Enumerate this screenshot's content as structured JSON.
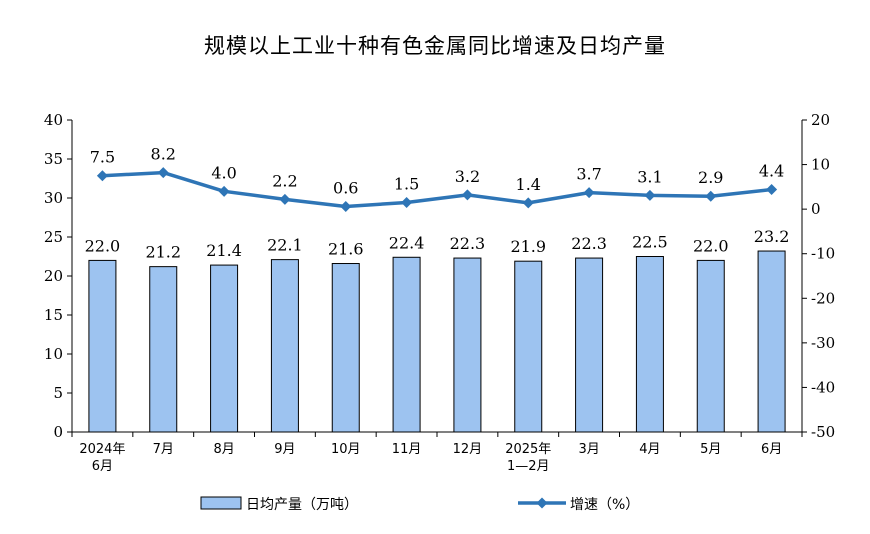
{
  "chart_data": {
    "type": "bar",
    "title": "规模以上工业十种有色金属同比增速及日均产量",
    "categories": [
      [
        "2024年",
        "6月"
      ],
      [
        "7月"
      ],
      [
        "8月"
      ],
      [
        "9月"
      ],
      [
        "10月"
      ],
      [
        "11月"
      ],
      [
        "12月"
      ],
      [
        "2025年",
        "1—2月"
      ],
      [
        "3月"
      ],
      [
        "4月"
      ],
      [
        "5月"
      ],
      [
        "6月"
      ]
    ],
    "series": [
      {
        "name": "日均产量（万吨）",
        "type": "bar",
        "axis": "left",
        "color": "#9dc3f0",
        "values": [
          22.0,
          21.2,
          21.4,
          22.1,
          21.6,
          22.4,
          22.3,
          21.9,
          22.3,
          22.5,
          22.0,
          23.2
        ],
        "labels": [
          "22.0",
          "21.2",
          "21.4",
          "22.1",
          "21.6",
          "22.4",
          "22.3",
          "21.9",
          "22.3",
          "22.5",
          "22.0",
          "23.2"
        ]
      },
      {
        "name": "增速（%）",
        "type": "line",
        "axis": "right",
        "color": "#2e75b6",
        "values": [
          7.5,
          8.2,
          4.0,
          2.2,
          0.6,
          1.5,
          3.2,
          1.4,
          3.7,
          3.1,
          2.9,
          4.4
        ],
        "labels": [
          "7.5",
          "8.2",
          "4.0",
          "2.2",
          "0.6",
          "1.5",
          "3.2",
          "1.4",
          "3.7",
          "3.1",
          "2.9",
          "4.4"
        ]
      }
    ],
    "y_left": {
      "min": 0,
      "max": 40,
      "step": 5,
      "ticks": [
        "0",
        "5",
        "10",
        "15",
        "20",
        "25",
        "30",
        "35",
        "40"
      ]
    },
    "y_right": {
      "min": -50,
      "max": 20,
      "step": 10,
      "ticks": [
        "-50",
        "-40",
        "-30",
        "-20",
        "-10",
        "0",
        "10",
        "20"
      ]
    },
    "grid": false,
    "legend_position": "bottom"
  }
}
